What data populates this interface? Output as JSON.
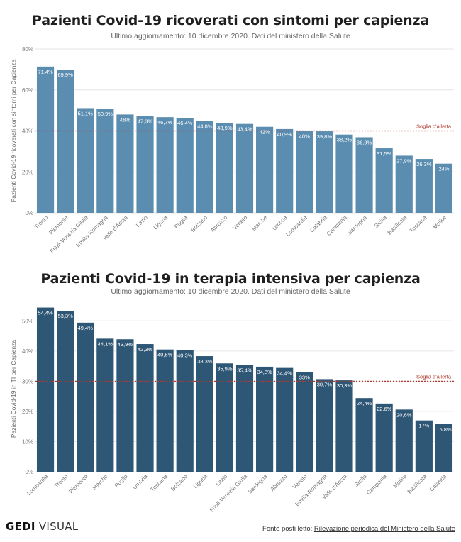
{
  "chart_data": [
    {
      "type": "bar",
      "title": "Pazienti Covid-19 ricoverati con sintomi per capienza",
      "subtitle": "Ultimo aggiornamento: 10 dicembre 2020. Dati del ministero della Salute",
      "ylabel": "Pazienti Covid-19 ricoverati con sintomi per Capienza",
      "xlabel": "",
      "ylim": [
        0,
        80
      ],
      "yticks": [
        0,
        20,
        40,
        60,
        80
      ],
      "ytick_labels": [
        "0%",
        "20%",
        "40%",
        "60%",
        "80%"
      ],
      "threshold": {
        "value": 40,
        "label": "Soglia d'allerta",
        "color": "#b03a2e"
      },
      "bar_color": "#5b8db0",
      "categories": [
        "Trento",
        "Piemonte",
        "Friuli-Venezia Giulia",
        "Emilia-Romagna",
        "Valle d'Aosta",
        "Lazio",
        "Liguria",
        "Puglia",
        "Bolzano",
        "Abruzzo",
        "Veneto",
        "Marche",
        "Umbria",
        "Lombardia",
        "Calabria",
        "Campania",
        "Sardegna",
        "Sicilia",
        "Basilicata",
        "Toscana",
        "Molise"
      ],
      "values": [
        71.4,
        69.9,
        51.1,
        50.9,
        48,
        47.3,
        46.7,
        46.4,
        44.8,
        43.9,
        43.4,
        42,
        40.9,
        40,
        39.8,
        38.2,
        36.9,
        31.5,
        27.9,
        26.3,
        24
      ],
      "value_labels": [
        "71,4%",
        "69,9%",
        "51,1%",
        "50,9%",
        "48%",
        "47,3%",
        "46,7%",
        "46,4%",
        "44,8%",
        "43,9%",
        "43,4%",
        "42%",
        "40,9%",
        "40%",
        "39,8%",
        "38,2%",
        "36,9%",
        "31,5%",
        "27,9%",
        "26,3%",
        "24%"
      ]
    },
    {
      "type": "bar",
      "title": "Pazienti Covid-19 in terapia intensiva per capienza",
      "subtitle": "Ultimo aggiornamento: 10 dicembre 2020. Dati del ministero della Salute",
      "ylabel": "Pazienti Covid-19 in TI per Capienza",
      "xlabel": "",
      "ylim": [
        0,
        55
      ],
      "yticks": [
        0,
        10,
        20,
        30,
        40,
        50
      ],
      "ytick_labels": [
        "0%",
        "10%",
        "20%",
        "30%",
        "40%",
        "50%"
      ],
      "threshold": {
        "value": 30,
        "label": "Soglia d'allerta",
        "color": "#b03a2e"
      },
      "bar_color": "#2e5675",
      "categories": [
        "Lombardia",
        "Trento",
        "Piemonte",
        "Marche",
        "Puglia",
        "Umbria",
        "Toscana",
        "Bolzano",
        "Liguria",
        "Lazio",
        "Friuli-Venezia Giulia",
        "Sardegna",
        "Abruzzo",
        "Veneto",
        "Emilia-Romagna",
        "Valle d'Aosta",
        "Sicilia",
        "Campania",
        "Molise",
        "Basilicata",
        "Calabria"
      ],
      "values": [
        54.4,
        53.3,
        49.4,
        44.1,
        43.9,
        42.3,
        40.5,
        40.3,
        38.3,
        35.9,
        35.4,
        34.8,
        34.4,
        33,
        30.7,
        30.3,
        24.4,
        22.6,
        20.6,
        17,
        15.8
      ],
      "value_labels": [
        "54,4%",
        "53,3%",
        "49,4%",
        "44,1%",
        "43,9%",
        "42,3%",
        "40,5%",
        "40,3%",
        "38,3%",
        "35,9%",
        "35,4%",
        "34,8%",
        "34,4%",
        "33%",
        "30,7%",
        "30,3%",
        "24,4%",
        "22,6%",
        "20,6%",
        "17%",
        "15,8%"
      ]
    }
  ],
  "footer": {
    "logo_bold": "GEDI",
    "logo_light": " VISUAL",
    "source_prefix": "Fonte posti letto: ",
    "source_link": "Rilevazione periodica del Ministero della Salute"
  }
}
